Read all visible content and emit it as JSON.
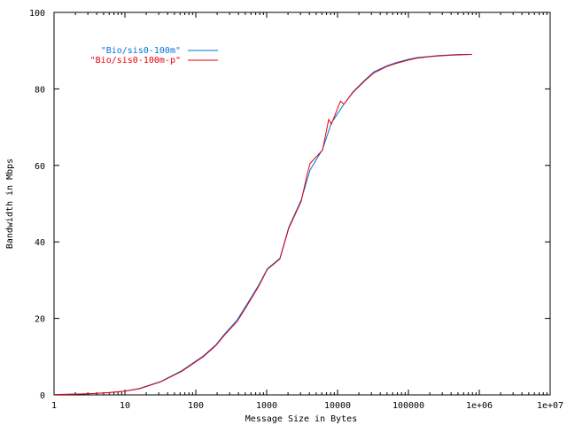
{
  "chart_data": {
    "type": "line",
    "xlabel": "Message Size in Bytes",
    "ylabel": "Bandwidth in Mbps",
    "xscale": "log",
    "xlim": [
      1,
      10000000
    ],
    "ylim": [
      0,
      100
    ],
    "xticks": [
      {
        "value": 1,
        "label": "1"
      },
      {
        "value": 10,
        "label": "10"
      },
      {
        "value": 100,
        "label": "100"
      },
      {
        "value": 1000,
        "label": "1000"
      },
      {
        "value": 10000,
        "label": "10000"
      },
      {
        "value": 100000,
        "label": "100000"
      },
      {
        "value": 1000000,
        "label": "1e+06"
      },
      {
        "value": 10000000,
        "label": "1e+07"
      }
    ],
    "yticks": [
      {
        "value": 0,
        "label": "0"
      },
      {
        "value": 20,
        "label": "20"
      },
      {
        "value": 40,
        "label": "40"
      },
      {
        "value": 60,
        "label": "60"
      },
      {
        "value": 80,
        "label": "80"
      },
      {
        "value": 100,
        "label": "100"
      }
    ],
    "grid": false,
    "legend": "top-left",
    "series": [
      {
        "name": "\"Bio/sis0-100m\"",
        "color": "#0072d8",
        "x": [
          1,
          2,
          3,
          4,
          6,
          8,
          10,
          16,
          32,
          64,
          128,
          192,
          256,
          384,
          512,
          768,
          1024,
          1536,
          2048,
          3072,
          4096,
          6144,
          8192,
          12288,
          16384,
          24576,
          32768,
          49152,
          65536,
          98304,
          131072,
          196608,
          262144,
          393216,
          524288,
          786432
        ],
        "y": [
          0.1,
          0.2,
          0.3,
          0.4,
          0.6,
          0.8,
          1.0,
          1.7,
          3.5,
          6.4,
          10.2,
          13.1,
          16.0,
          19.6,
          23.3,
          28.6,
          33.0,
          35.7,
          43.8,
          51.0,
          58.8,
          64.2,
          71.1,
          76.0,
          79.2,
          82.4,
          84.5,
          86.0,
          86.8,
          87.7,
          88.2,
          88.5,
          88.7,
          88.9,
          89.0,
          89.0
        ]
      },
      {
        "name": "\"Bio/sis0-100m-p\"",
        "color": "#e8000b",
        "x": [
          1,
          2,
          3,
          4,
          6,
          8,
          10,
          16,
          32,
          64,
          128,
          192,
          256,
          384,
          512,
          768,
          1024,
          1536,
          2048,
          3072,
          3700,
          4096,
          6144,
          7500,
          8192,
          11000,
          12288,
          16384,
          24576,
          32768,
          49152,
          65536,
          98304,
          131072,
          196608,
          262144,
          393216,
          524288,
          786432
        ],
        "y": [
          0.1,
          0.2,
          0.3,
          0.4,
          0.6,
          0.8,
          1.0,
          1.6,
          3.4,
          6.2,
          10.0,
          12.9,
          15.7,
          19.2,
          22.9,
          28.3,
          32.8,
          35.5,
          43.5,
          50.6,
          57.5,
          60.5,
          64.0,
          72.0,
          70.8,
          76.8,
          76.0,
          79.0,
          82.2,
          84.2,
          85.8,
          86.6,
          87.5,
          88.0,
          88.4,
          88.6,
          88.8,
          88.9,
          89.0
        ]
      }
    ]
  }
}
